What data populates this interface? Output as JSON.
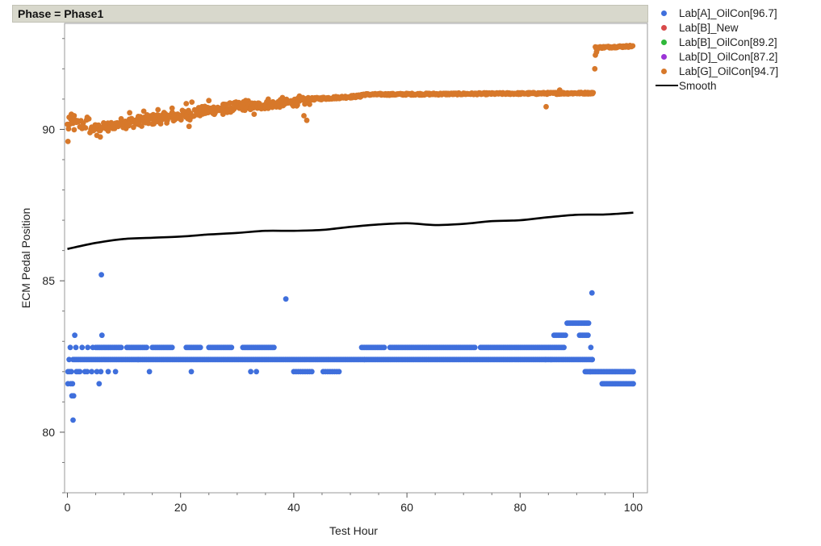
{
  "header": {
    "title": "Phase = Phase1"
  },
  "legend": [
    {
      "label": "Lab[A]_OilCon[96.7]",
      "color": "#3f6fdc",
      "kind": "dot"
    },
    {
      "label": "Lab[B]_New",
      "color": "#d84a4a",
      "kind": "dot"
    },
    {
      "label": "Lab[B]_OilCon[89.2]",
      "color": "#2fb83a",
      "kind": "dot"
    },
    {
      "label": "Lab[D]_OilCon[87.2]",
      "color": "#9b34d6",
      "kind": "dot"
    },
    {
      "label": "Lab[G]_OilCon[94.7]",
      "color": "#d7782a",
      "kind": "dot"
    },
    {
      "label": "Smooth",
      "color": "#000000",
      "kind": "line"
    }
  ],
  "chart_data": {
    "type": "scatter",
    "xlabel": "Test Hour",
    "ylabel": "ECM Pedal Position",
    "xlim": [
      -0.5,
      102.5
    ],
    "ylim": [
      78,
      93.5
    ],
    "xticks": [
      0,
      20,
      40,
      60,
      80,
      100
    ],
    "yticks": [
      80,
      85,
      90
    ],
    "grid": false,
    "legend_position": "right",
    "series": [
      {
        "name": "Lab[G]_OilCon[94.7]",
        "color": "#d7782a",
        "segments": [
          {
            "x0": 0,
            "x1": 4,
            "y0": 90.1,
            "y1": 90.2,
            "spread": 0.22,
            "step": 0.2
          },
          {
            "x0": 4,
            "x1": 10,
            "y0": 90.0,
            "y1": 90.2,
            "spread": 0.14,
            "step": 0.15
          },
          {
            "x0": 10,
            "x1": 22,
            "y0": 90.2,
            "y1": 90.5,
            "spread": 0.18,
            "step": 0.12
          },
          {
            "x0": 22,
            "x1": 32,
            "y0": 90.55,
            "y1": 90.8,
            "spread": 0.16,
            "step": 0.12
          },
          {
            "x0": 32,
            "x1": 43,
            "y0": 90.75,
            "y1": 90.95,
            "spread": 0.13,
            "step": 0.12
          },
          {
            "x0": 43,
            "x1": 52,
            "y0": 91.0,
            "y1": 91.1,
            "spread": 0.04,
            "step": 0.12
          },
          {
            "x0": 52,
            "x1": 93,
            "y0": 91.15,
            "y1": 91.2,
            "spread": 0.03,
            "step": 0.12
          },
          {
            "x0": 93.3,
            "x1": 100,
            "y0": 92.7,
            "y1": 92.75,
            "spread": 0.03,
            "step": 0.12
          }
        ],
        "points": [
          [
            0.1,
            89.6
          ],
          [
            0.3,
            90.4
          ],
          [
            0.7,
            90.5
          ],
          [
            1.2,
            90.45
          ],
          [
            3.5,
            90.4
          ],
          [
            5.2,
            89.8
          ],
          [
            5.8,
            89.75
          ],
          [
            7.2,
            89.95
          ],
          [
            9.5,
            90.35
          ],
          [
            11.0,
            90.55
          ],
          [
            13.5,
            90.6
          ],
          [
            16.0,
            90.65
          ],
          [
            18.5,
            90.7
          ],
          [
            21.0,
            90.85
          ],
          [
            22.0,
            90.9
          ],
          [
            21.5,
            90.1
          ],
          [
            25.0,
            90.95
          ],
          [
            27.5,
            90.5
          ],
          [
            31.5,
            90.95
          ],
          [
            33.0,
            90.5
          ],
          [
            35.5,
            91.0
          ],
          [
            38.0,
            91.05
          ],
          [
            41.0,
            91.1
          ],
          [
            42.3,
            90.3
          ],
          [
            41.8,
            90.45
          ],
          [
            84.6,
            90.75
          ],
          [
            93.2,
            92.0
          ],
          [
            93.3,
            92.45
          ],
          [
            93.5,
            92.55
          ],
          [
            93.7,
            92.65
          ],
          [
            87.0,
            91.3
          ]
        ]
      },
      {
        "name": "Lab[A]_OilCon[96.7]",
        "color": "#3f6fdc",
        "rows": [
          {
            "y": 82.4,
            "x0": 1,
            "x1": 92.8,
            "step": 0.25
          },
          {
            "y": 82.8,
            "x0": 5,
            "x1": 87.8,
            "step": 0.25,
            "gaps": [
              [
                9.5,
                10.5
              ],
              [
                14,
                15
              ],
              [
                18.5,
                21
              ],
              [
                23.5,
                25
              ],
              [
                29,
                31
              ],
              [
                36.5,
                52
              ],
              [
                56,
                57
              ],
              [
                72,
                73
              ]
            ]
          },
          {
            "y": 82.0,
            "x0": 40,
            "x1": 48,
            "step": 0.4,
            "gaps": [
              [
                43.5,
                45
              ]
            ]
          },
          {
            "y": 82.0,
            "x0": 91.5,
            "x1": 100,
            "step": 0.2
          },
          {
            "y": 81.6,
            "x0": 94.5,
            "x1": 100,
            "step": 0.2
          },
          {
            "y": 83.6,
            "x0": 88.3,
            "x1": 92.3,
            "step": 0.2
          },
          {
            "y": 83.2,
            "x0": 86.0,
            "x1": 88.0,
            "step": 0.25
          },
          {
            "y": 83.2,
            "x0": 90.5,
            "x1": 92.0,
            "step": 0.25
          }
        ],
        "points": [
          [
            0.1,
            82.0
          ],
          [
            0.1,
            81.6
          ],
          [
            0.3,
            82.4
          ],
          [
            0.4,
            82.0
          ],
          [
            0.5,
            82.8
          ],
          [
            0.6,
            81.6
          ],
          [
            0.7,
            82.0
          ],
          [
            0.8,
            81.2
          ],
          [
            0.9,
            81.6
          ],
          [
            1.0,
            80.4
          ],
          [
            1.1,
            81.2
          ],
          [
            1.3,
            83.2
          ],
          [
            1.5,
            82.8
          ],
          [
            1.6,
            82.0
          ],
          [
            1.9,
            82.0
          ],
          [
            2.2,
            82.0
          ],
          [
            2.6,
            82.8
          ],
          [
            3.1,
            82.0
          ],
          [
            3.5,
            82.0
          ],
          [
            3.6,
            82.8
          ],
          [
            4.3,
            82.0
          ],
          [
            4.5,
            82.8
          ],
          [
            5.2,
            82.0
          ],
          [
            5.6,
            81.6
          ],
          [
            5.9,
            82.0
          ],
          [
            6.0,
            85.2
          ],
          [
            6.1,
            83.2
          ],
          [
            7.2,
            82.0
          ],
          [
            8.5,
            82.0
          ],
          [
            14.5,
            82.0
          ],
          [
            21.9,
            82.0
          ],
          [
            32.4,
            82.0
          ],
          [
            33.4,
            82.0
          ],
          [
            38.6,
            84.4
          ],
          [
            12.5,
            82.4
          ],
          [
            52.5,
            82.4
          ],
          [
            84.5,
            82.4
          ],
          [
            85.5,
            82.4
          ],
          [
            92.7,
            84.6
          ],
          [
            92.7,
            82.4
          ],
          [
            92.5,
            82.8
          ],
          [
            92.4,
            82.0
          ],
          [
            100.0,
            82.0
          ],
          [
            100.0,
            81.6
          ]
        ]
      }
    ],
    "smooth": {
      "name": "Smooth",
      "color": "#000000",
      "x": [
        0,
        5,
        10,
        15,
        20,
        25,
        30,
        35,
        40,
        45,
        50,
        55,
        60,
        65,
        70,
        75,
        80,
        85,
        90,
        95,
        100
      ],
      "y": [
        86.05,
        86.25,
        86.38,
        86.42,
        86.46,
        86.53,
        86.58,
        86.65,
        86.65,
        86.68,
        86.78,
        86.86,
        86.9,
        86.84,
        86.88,
        86.97,
        87.0,
        87.1,
        87.18,
        87.19,
        87.25
      ]
    }
  }
}
